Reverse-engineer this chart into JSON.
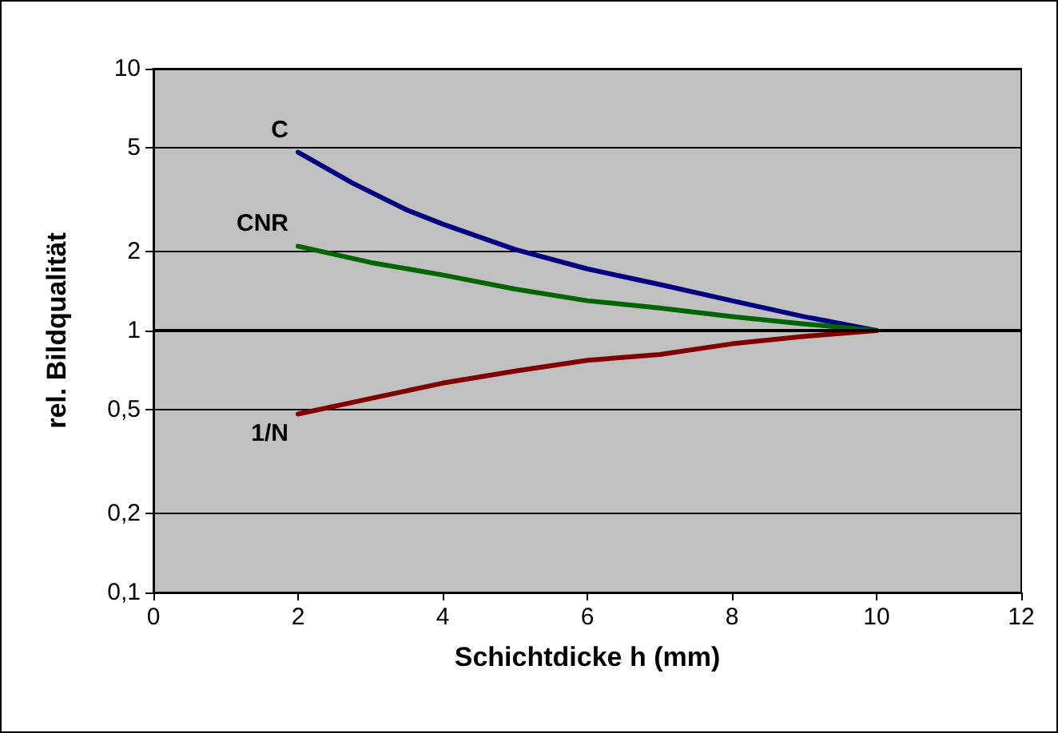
{
  "chart_data": {
    "type": "line",
    "xlabel": "Schichtdicke h (mm)",
    "ylabel": "rel. Bildqualität",
    "log": "y",
    "grid": "y",
    "legend": false,
    "marker": "none",
    "line_style": "solid",
    "xlim": [
      0,
      12
    ],
    "xticks": [
      0,
      2,
      4,
      6,
      8,
      10,
      12
    ],
    "ylim": [
      0.1,
      10
    ],
    "yticks": [
      {
        "value": 0.1,
        "label": "0,1"
      },
      {
        "value": 0.2,
        "label": "0,2"
      },
      {
        "value": 0.5,
        "label": "0,5"
      },
      1,
      2,
      5,
      10
    ],
    "ref_lines": [
      {
        "axis": "y",
        "value": 1,
        "color": "#000000"
      }
    ],
    "series": [
      {
        "name": "C",
        "color": "#000080",
        "x": [
          2,
          2.75,
          3.5,
          4,
          5,
          6,
          7,
          8,
          9,
          10
        ],
        "values": [
          4.8,
          3.66,
          2.89,
          2.55,
          2.04,
          1.72,
          1.5,
          1.3,
          1.13,
          1
        ]
      },
      {
        "name": "CNR",
        "color": "#006400",
        "x": [
          2,
          3,
          4,
          5,
          6,
          7,
          8,
          9,
          10
        ],
        "values": [
          2.1,
          1.82,
          1.63,
          1.44,
          1.3,
          1.22,
          1.13,
          1.06,
          1
        ]
      },
      {
        "name": "1/N",
        "color": "#800000",
        "x": [
          2,
          3,
          4,
          5,
          6,
          7,
          8,
          9,
          10
        ],
        "values": [
          0.48,
          0.55,
          0.63,
          0.7,
          0.77,
          0.81,
          0.89,
          0.95,
          1
        ]
      }
    ]
  }
}
